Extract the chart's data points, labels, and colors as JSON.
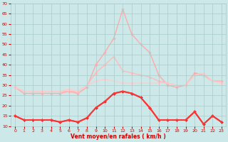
{
  "x": [
    0,
    1,
    2,
    3,
    4,
    5,
    6,
    7,
    8,
    9,
    10,
    11,
    12,
    13,
    14,
    15,
    16,
    17,
    18,
    19,
    20,
    21,
    22,
    23
  ],
  "series": [
    {
      "values": [
        29,
        26,
        26,
        26,
        26,
        26,
        27,
        26,
        29,
        40,
        46,
        53,
        67,
        55,
        50,
        46,
        35,
        30,
        29,
        30,
        36,
        35,
        32,
        32
      ],
      "color": "#ffaaaa",
      "lw": 1.0,
      "marker": "*",
      "ms": 3,
      "zorder": 2
    },
    {
      "values": [
        29,
        27,
        27,
        27,
        27,
        27,
        27,
        27,
        30,
        36,
        40,
        44,
        37,
        36,
        35,
        34,
        32,
        31,
        30,
        30,
        35,
        35,
        32,
        32
      ],
      "color": "#ffbbbb",
      "lw": 1.0,
      "marker": "^",
      "ms": 2,
      "zorder": 2
    },
    {
      "values": [
        29,
        27,
        27,
        27,
        27,
        27,
        28,
        27,
        30,
        32,
        33,
        32,
        31,
        31,
        31,
        31,
        31,
        31,
        30,
        30,
        35,
        36,
        32,
        31
      ],
      "color": "#ffcccc",
      "lw": 1.0,
      "marker": "^",
      "ms": 2,
      "zorder": 2
    },
    {
      "values": [
        15,
        13,
        13,
        13,
        13,
        12,
        13,
        12,
        14,
        19,
        22,
        26,
        27,
        26,
        24,
        19,
        13,
        13,
        13,
        13,
        17,
        11,
        15,
        12
      ],
      "color": "#dd2222",
      "lw": 1.2,
      "marker": "D",
      "ms": 2,
      "zorder": 4
    },
    {
      "values": [
        15,
        13,
        13,
        13,
        13,
        12,
        13,
        12,
        14,
        19,
        22,
        26,
        27,
        26,
        24,
        19,
        13,
        13,
        13,
        13,
        17,
        11,
        15,
        12
      ],
      "color": "#ff3333",
      "lw": 1.5,
      "marker": "s",
      "ms": 2,
      "zorder": 5
    }
  ],
  "xlabel": "Vent moyen/en rafales ( km/h )",
  "ylim": [
    10,
    70
  ],
  "yticks": [
    10,
    15,
    20,
    25,
    30,
    35,
    40,
    45,
    50,
    55,
    60,
    65,
    70
  ],
  "xticks": [
    0,
    1,
    2,
    3,
    4,
    5,
    6,
    7,
    8,
    9,
    10,
    11,
    12,
    13,
    14,
    15,
    16,
    17,
    18,
    19,
    20,
    21,
    22,
    23
  ],
  "bg_color": "#cce8e8",
  "grid_color": "#aacccc",
  "xlabel_color": "#cc0000",
  "tick_color": "#cc0000"
}
